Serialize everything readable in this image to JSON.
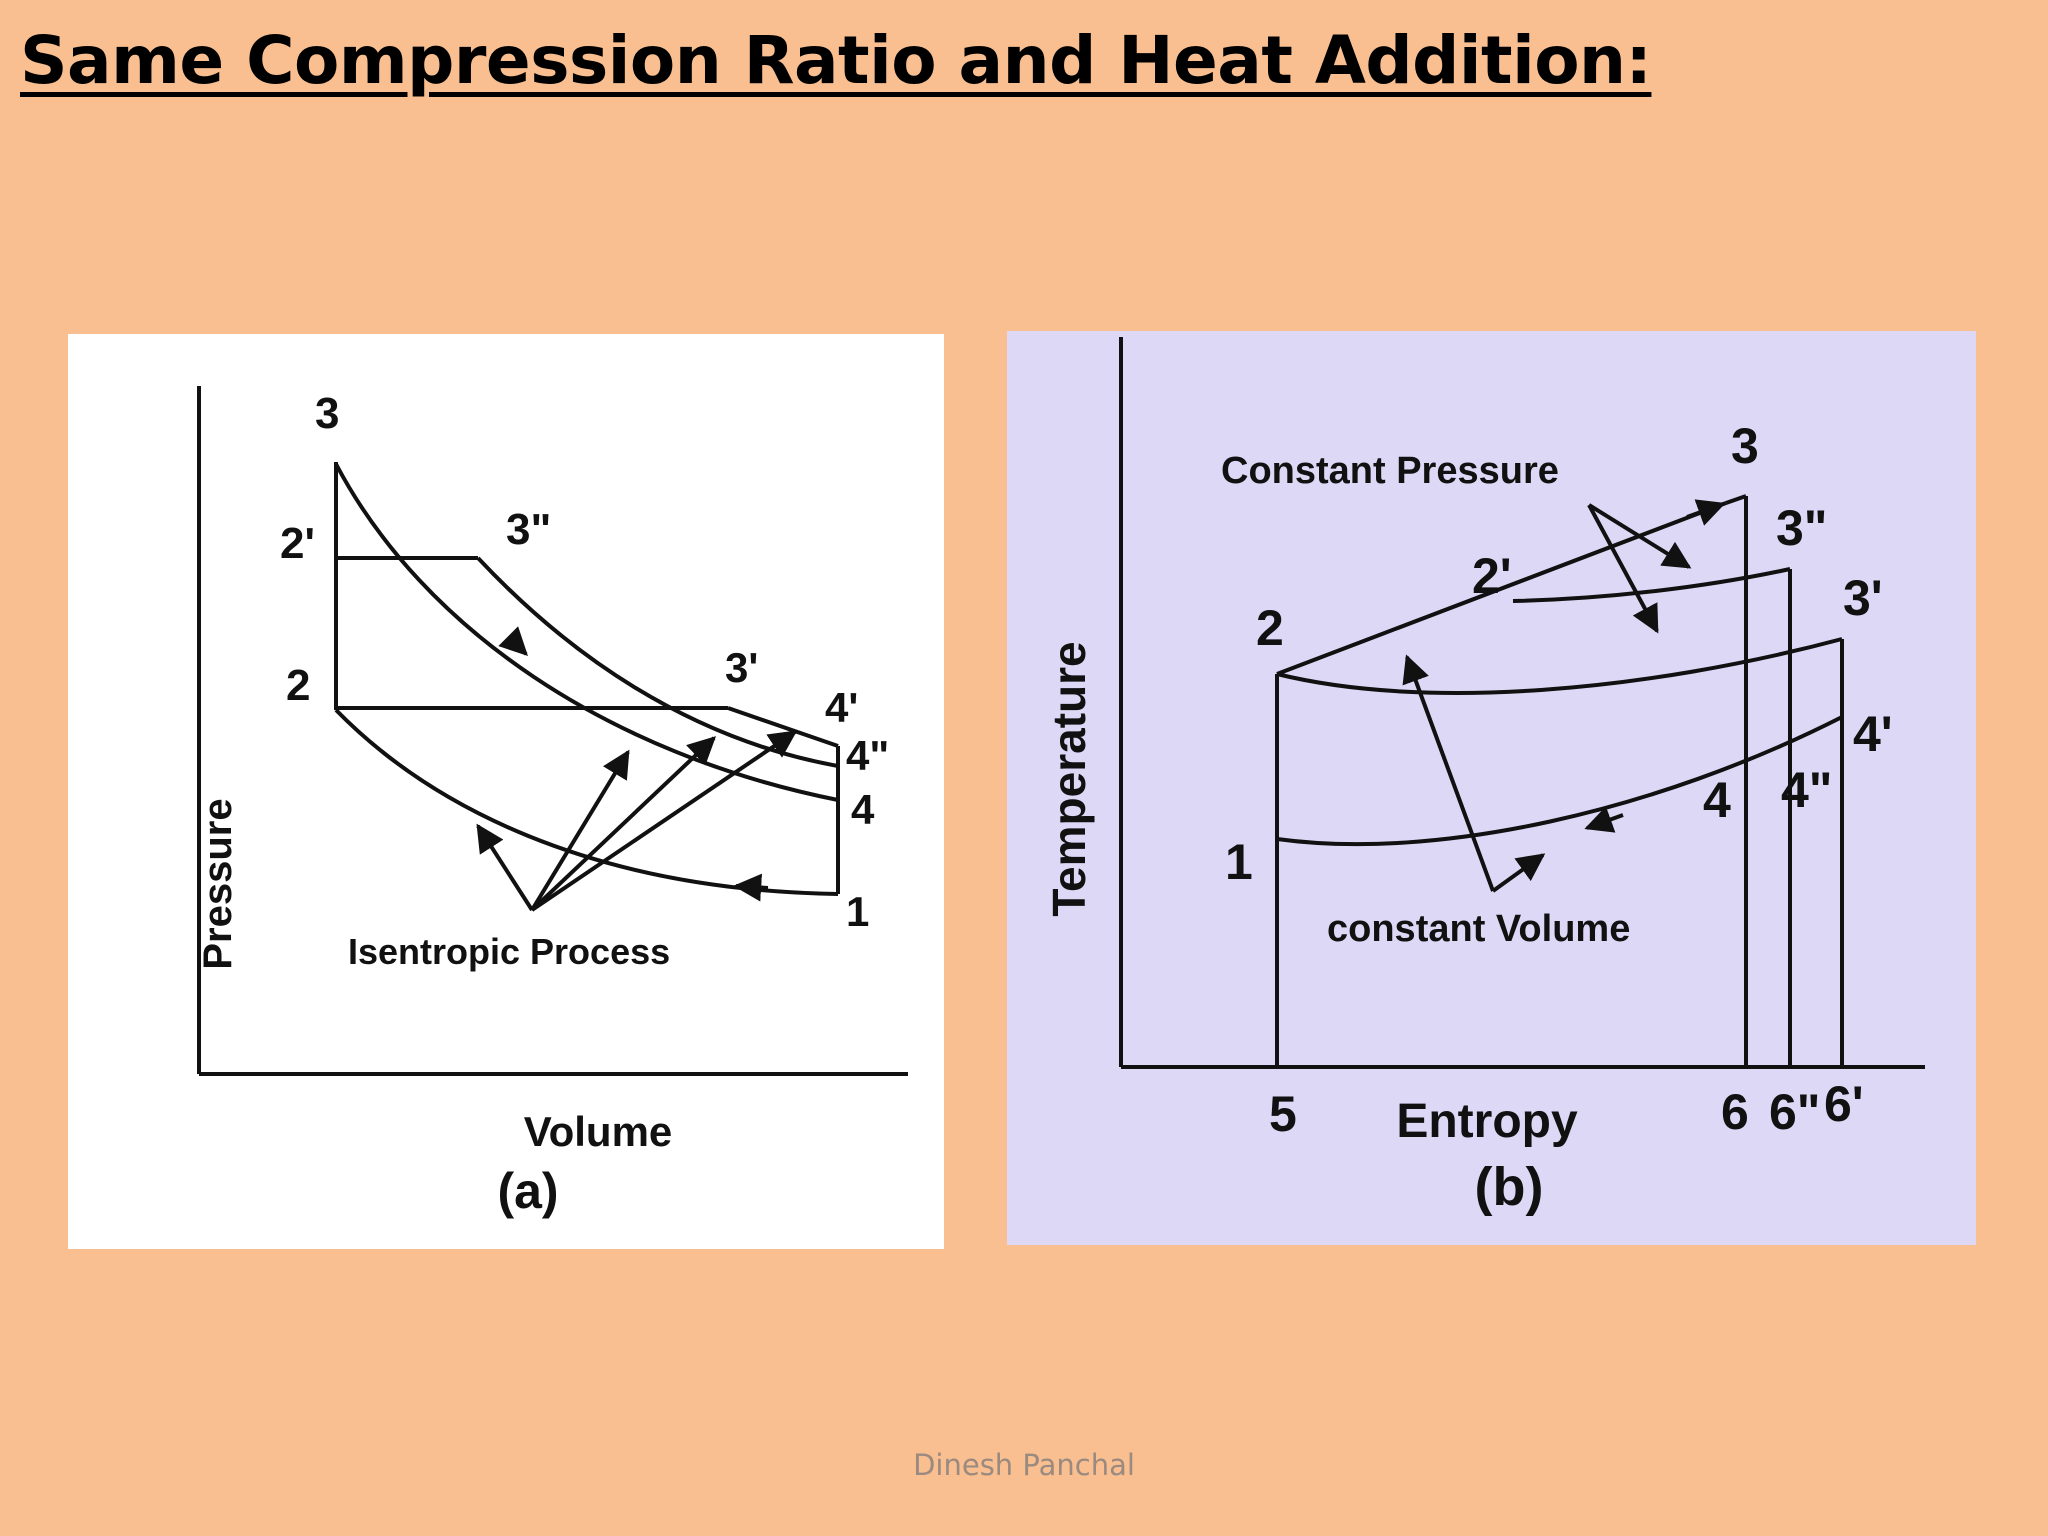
{
  "slide": {
    "title": "Same Compression Ratio and Heat Addition:",
    "footer": "Dinesh Panchal"
  },
  "diagram_a": {
    "caption": "(a)",
    "x_axis_label": "Volume",
    "y_axis_label": "Pressure",
    "annotation": "Isentropic Process",
    "points": {
      "p1": "1",
      "p2": "2",
      "p2prime": "2'",
      "p3": "3",
      "p3dprime": "3\"",
      "p3prime": "3'",
      "p4": "4",
      "p4prime": "4'",
      "p4dprime": "4\""
    }
  },
  "diagram_b": {
    "caption": "(b)",
    "x_axis_label": "Entropy",
    "y_axis_label": "Temperature",
    "annotation_top": "Constant Pressure",
    "annotation_bottom": "constant Volume",
    "points": {
      "p1": "1",
      "p2": "2",
      "p2prime": "2'",
      "p3": "3",
      "p3dprime": "3\"",
      "p3prime": "3'",
      "p4": "4",
      "p4dprime": "4\"",
      "p4prime": "4'",
      "p5": "5",
      "p6": "6",
      "p6dprime": "6\"",
      "p6prime": "6'"
    }
  }
}
